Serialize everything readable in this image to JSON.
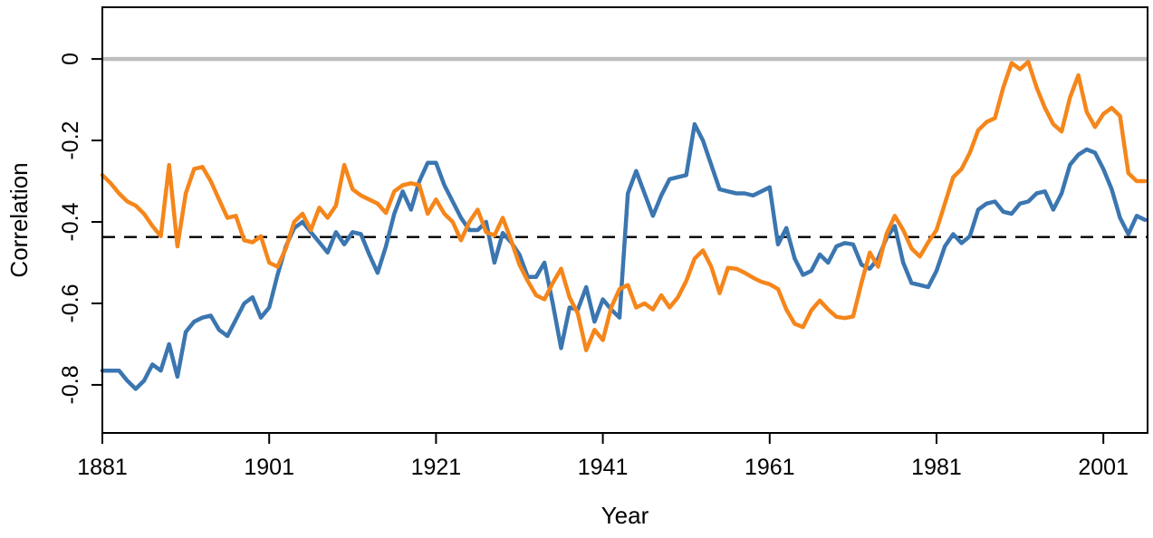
{
  "chart_data": {
    "type": "line",
    "title": "",
    "xlabel": "Year",
    "ylabel": "Correlation",
    "xlim": [
      1881,
      2006.3
    ],
    "ylim": [
      -0.918,
      0.127
    ],
    "grid": "off",
    "legend": "none",
    "background_color": "#ffffff",
    "axis_color": "#000000",
    "x_ticks": [
      1881,
      1901,
      1921,
      1941,
      1961,
      1981,
      2001
    ],
    "x_tick_labels": [
      "1881",
      "1901",
      "1921",
      "1941",
      "1961",
      "1981",
      "2001"
    ],
    "y_ticks": [
      0,
      -0.2,
      -0.4,
      -0.6,
      -0.8
    ],
    "y_tick_labels": [
      "0",
      "-0.2",
      "-0.4",
      "-0.6",
      "-0.8"
    ],
    "reference_lines": [
      {
        "id": "zero-line",
        "value": 0,
        "style": "solid",
        "color": "#BEBEBE",
        "width": 4.5
      },
      {
        "id": "mean-dashed-line",
        "value": -0.437,
        "style": "dashed",
        "color": "#000000",
        "width": 2.3
      }
    ],
    "x_start": 1881,
    "x_step": 1,
    "series": [
      {
        "id": "blue-line",
        "color": "#3B76B0",
        "width": 4.5,
        "values": [
          -0.765,
          -0.765,
          -0.765,
          -0.79,
          -0.81,
          -0.79,
          -0.75,
          -0.765,
          -0.7,
          -0.78,
          -0.67,
          -0.645,
          -0.635,
          -0.63,
          -0.665,
          -0.68,
          -0.64,
          -0.6,
          -0.585,
          -0.635,
          -0.61,
          -0.53,
          -0.46,
          -0.415,
          -0.4,
          -0.425,
          -0.45,
          -0.475,
          -0.425,
          -0.455,
          -0.425,
          -0.43,
          -0.48,
          -0.525,
          -0.46,
          -0.38,
          -0.325,
          -0.37,
          -0.3,
          -0.255,
          -0.255,
          -0.31,
          -0.35,
          -0.39,
          -0.42,
          -0.42,
          -0.4,
          -0.5,
          -0.427,
          -0.45,
          -0.48,
          -0.535,
          -0.535,
          -0.5,
          -0.6,
          -0.71,
          -0.61,
          -0.615,
          -0.56,
          -0.645,
          -0.59,
          -0.615,
          -0.635,
          -0.33,
          -0.275,
          -0.33,
          -0.385,
          -0.335,
          -0.295,
          -0.29,
          -0.285,
          -0.16,
          -0.2,
          -0.26,
          -0.32,
          -0.325,
          -0.33,
          -0.33,
          -0.335,
          -0.325,
          -0.315,
          -0.455,
          -0.415,
          -0.49,
          -0.53,
          -0.52,
          -0.48,
          -0.5,
          -0.46,
          -0.452,
          -0.455,
          -0.505,
          -0.515,
          -0.49,
          -0.44,
          -0.41,
          -0.5,
          -0.55,
          -0.555,
          -0.56,
          -0.52,
          -0.46,
          -0.43,
          -0.452,
          -0.435,
          -0.37,
          -0.355,
          -0.35,
          -0.375,
          -0.38,
          -0.355,
          -0.35,
          -0.33,
          -0.325,
          -0.37,
          -0.33,
          -0.26,
          -0.235,
          -0.222,
          -0.23,
          -0.27,
          -0.32,
          -0.39,
          -0.43,
          -0.385,
          -0.395
        ]
      },
      {
        "id": "orange-line",
        "color": "#F5861B",
        "width": 4.5,
        "values": [
          -0.285,
          -0.305,
          -0.33,
          -0.35,
          -0.36,
          -0.38,
          -0.41,
          -0.435,
          -0.26,
          -0.46,
          -0.33,
          -0.27,
          -0.265,
          -0.3,
          -0.345,
          -0.39,
          -0.385,
          -0.445,
          -0.45,
          -0.435,
          -0.5,
          -0.51,
          -0.465,
          -0.4,
          -0.38,
          -0.42,
          -0.365,
          -0.39,
          -0.36,
          -0.26,
          -0.32,
          -0.335,
          -0.345,
          -0.355,
          -0.378,
          -0.325,
          -0.31,
          -0.305,
          -0.31,
          -0.38,
          -0.345,
          -0.38,
          -0.4,
          -0.445,
          -0.4,
          -0.37,
          -0.425,
          -0.433,
          -0.39,
          -0.445,
          -0.505,
          -0.545,
          -0.58,
          -0.59,
          -0.55,
          -0.515,
          -0.585,
          -0.625,
          -0.715,
          -0.665,
          -0.69,
          -0.61,
          -0.565,
          -0.555,
          -0.61,
          -0.6,
          -0.615,
          -0.58,
          -0.61,
          -0.585,
          -0.545,
          -0.49,
          -0.47,
          -0.51,
          -0.575,
          -0.513,
          -0.515,
          -0.525,
          -0.537,
          -0.547,
          -0.553,
          -0.565,
          -0.615,
          -0.65,
          -0.658,
          -0.617,
          -0.593,
          -0.615,
          -0.633,
          -0.636,
          -0.632,
          -0.55,
          -0.475,
          -0.51,
          -0.43,
          -0.385,
          -0.42,
          -0.465,
          -0.485,
          -0.45,
          -0.42,
          -0.355,
          -0.29,
          -0.27,
          -0.23,
          -0.175,
          -0.155,
          -0.145,
          -0.07,
          -0.01,
          -0.025,
          -0.007,
          -0.07,
          -0.12,
          -0.16,
          -0.178,
          -0.095,
          -0.04,
          -0.13,
          -0.167,
          -0.135,
          -0.12,
          -0.14,
          -0.28,
          -0.3,
          -0.3
        ]
      }
    ]
  }
}
